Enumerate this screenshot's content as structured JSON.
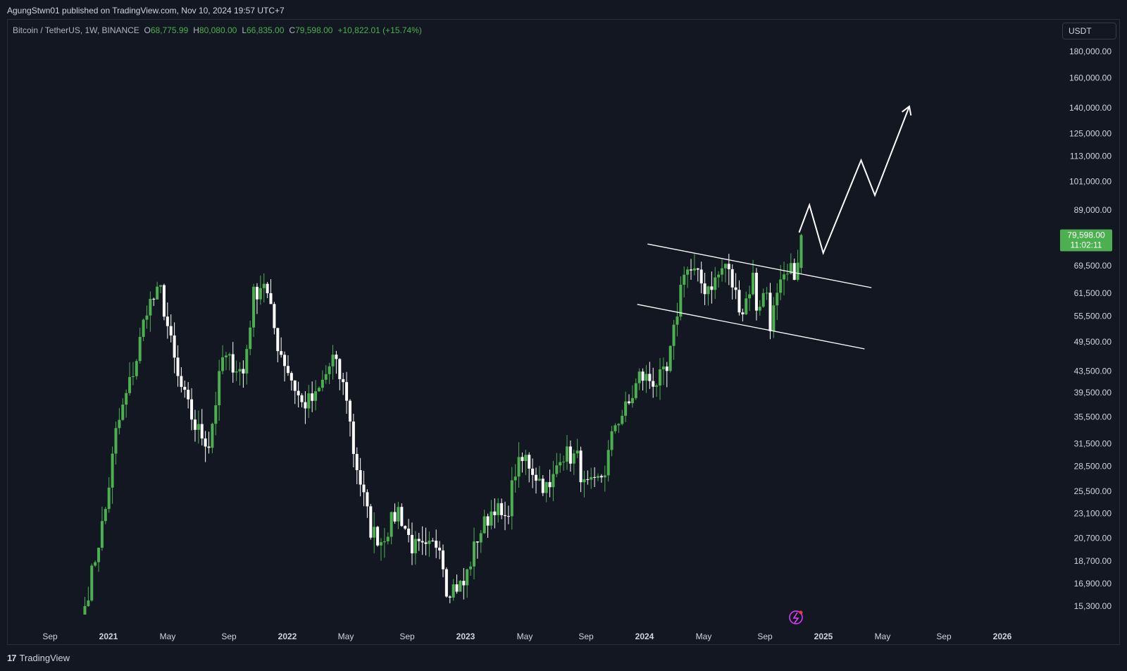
{
  "header": {
    "publisher": "AgungStwn01 published on TradingView.com, Nov 10, 2024 19:57 UTC+7"
  },
  "legend": {
    "symbol": "Bitcoin / TetherUS, 1W, BINANCE",
    "open_label": "O",
    "open": "68,775.99",
    "high_label": "H",
    "high": "80,080.00",
    "low_label": "L",
    "low": "66,835.00",
    "close_label": "C",
    "close": "79,598.00",
    "change": "+10,822.01 (+15.74%)"
  },
  "currency_button": {
    "label": "USDT"
  },
  "last_price": {
    "price": "79,598.00",
    "countdown": "11:02:11",
    "color": "#4caf50"
  },
  "footer": {
    "brand": "TradingView",
    "logo": "17"
  },
  "colors": {
    "background": "#131722",
    "up": "#4caf50",
    "down": "#ffffff",
    "text": "#d1d4dc"
  },
  "chart_data": {
    "type": "candlestick",
    "interval": "1W",
    "scale": "log",
    "y_tick_labels": [
      "180,000.00",
      "160,000.00",
      "140,000.00",
      "125,000.00",
      "113,000.00",
      "101,000.00",
      "89,000.00",
      "69,500.00",
      "61,500.00",
      "55,500.00",
      "49,500.00",
      "43,500.00",
      "39,500.00",
      "35,500.00",
      "31,500.00",
      "28,500.00",
      "25,500.00",
      "23,100.00",
      "20,700.00",
      "18,700.00",
      "16,900.00",
      "15,300.00"
    ],
    "x_tick_labels": [
      {
        "label": "Sep",
        "year": false
      },
      {
        "label": "2021",
        "year": true
      },
      {
        "label": "May",
        "year": false
      },
      {
        "label": "Sep",
        "year": false
      },
      {
        "label": "2022",
        "year": true
      },
      {
        "label": "May",
        "year": false
      },
      {
        "label": "Sep",
        "year": false
      },
      {
        "label": "2023",
        "year": true
      },
      {
        "label": "May",
        "year": false
      },
      {
        "label": "Sep",
        "year": false
      },
      {
        "label": "2024",
        "year": true
      },
      {
        "label": "May",
        "year": false
      },
      {
        "label": "Sep",
        "year": false
      },
      {
        "label": "2025",
        "year": true
      },
      {
        "label": "May",
        "year": false
      },
      {
        "label": "Sep",
        "year": false
      },
      {
        "label": "2026",
        "year": true
      }
    ],
    "price_path": [
      [
        "2020-11-09",
        15300
      ],
      [
        "2020-12-21",
        23500
      ],
      [
        "2021-01-11",
        33000
      ],
      [
        "2021-02-22",
        46000
      ],
      [
        "2021-03-15",
        58000
      ],
      [
        "2021-04-12",
        62000
      ],
      [
        "2021-05-17",
        42000
      ],
      [
        "2021-06-21",
        34000
      ],
      [
        "2021-07-19",
        31500
      ],
      [
        "2021-08-16",
        46000
      ],
      [
        "2021-09-06",
        45000
      ],
      [
        "2021-09-27",
        43000
      ],
      [
        "2021-10-18",
        61000
      ],
      [
        "2021-11-08",
        65000
      ],
      [
        "2021-12-06",
        49000
      ],
      [
        "2022-01-03",
        42000
      ],
      [
        "2022-01-24",
        37500
      ],
      [
        "2022-02-21",
        38500
      ],
      [
        "2022-03-28",
        46000
      ],
      [
        "2022-04-25",
        39000
      ],
      [
        "2022-05-09",
        30500
      ],
      [
        "2022-06-13",
        21500
      ],
      [
        "2022-07-04",
        20500
      ],
      [
        "2022-08-08",
        23500
      ],
      [
        "2022-09-05",
        20000
      ],
      [
        "2022-10-03",
        19500
      ],
      [
        "2022-10-31",
        20500
      ],
      [
        "2022-11-14",
        16600
      ],
      [
        "2022-12-19",
        16800
      ],
      [
        "2023-01-16",
        20800
      ],
      [
        "2023-02-20",
        24000
      ],
      [
        "2023-03-13",
        22000
      ],
      [
        "2023-04-03",
        28000
      ],
      [
        "2023-04-24",
        29500
      ],
      [
        "2023-05-22",
        26800
      ],
      [
        "2023-06-12",
        25500
      ],
      [
        "2023-07-03",
        30300
      ],
      [
        "2023-08-07",
        29500
      ],
      [
        "2023-08-21",
        26000
      ],
      [
        "2023-09-11",
        26000
      ],
      [
        "2023-10-02",
        28000
      ],
      [
        "2023-10-23",
        34500
      ],
      [
        "2023-11-20",
        37500
      ],
      [
        "2023-12-11",
        42500
      ],
      [
        "2024-01-15",
        41500
      ],
      [
        "2024-02-05",
        43000
      ],
      [
        "2024-02-19",
        51500
      ],
      [
        "2024-03-04",
        63000
      ],
      [
        "2024-03-11",
        69000
      ],
      [
        "2024-04-01",
        67000
      ],
      [
        "2024-04-22",
        63000
      ],
      [
        "2024-05-13",
        65000
      ],
      [
        "2024-06-03",
        70000
      ],
      [
        "2024-06-24",
        61000
      ],
      [
        "2024-07-08",
        57000
      ],
      [
        "2024-07-29",
        66000
      ],
      [
        "2024-08-05",
        58000
      ],
      [
        "2024-08-26",
        62000
      ],
      [
        "2024-09-02",
        54000
      ],
      [
        "2024-09-23",
        63000
      ],
      [
        "2024-10-14",
        67500
      ],
      [
        "2024-10-28",
        68800
      ],
      [
        "2024-11-04",
        79598
      ]
    ],
    "channel": {
      "upper": [
        [
          "2024-01-01",
          76500
        ],
        [
          "2025-03-31",
          63000
        ]
      ],
      "lower": [
        [
          "2023-12-11",
          58500
        ],
        [
          "2025-03-17",
          48000
        ]
      ]
    },
    "projection": [
      [
        "2024-11-04",
        80500
      ],
      [
        "2024-11-25",
        91000
      ],
      [
        "2024-12-23",
        73500
      ],
      [
        "2025-03-10",
        111000
      ],
      [
        "2025-04-07",
        95000
      ],
      [
        "2025-06-16",
        141000
      ]
    ]
  }
}
